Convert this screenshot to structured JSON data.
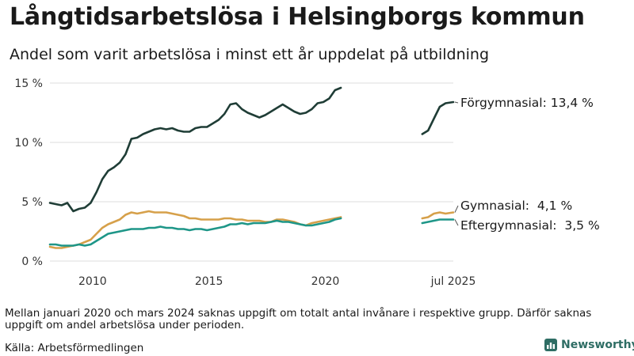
{
  "title": "Långtidsarbetslösa i Helsingborgs kommun",
  "subtitle": "Andel som varit arbetslösa i minst ett år uppdelat på utbildning",
  "note": "Mellan januari 2020 och mars 2024 saknas uppgift om totalt antal invånare i respektive grupp. Därför saknas uppgift om andel arbetslösa under perioden.",
  "source": "Källa: Arbetsförmedlingen",
  "brand": "Newsworthy",
  "colors": {
    "forgymnasial": "#1f3d36",
    "gymnasial": "#d6a04a",
    "eftergymnasial": "#1e9688",
    "grid": "#dcdcdc",
    "brand": "#2e6d64"
  },
  "chart_data": {
    "type": "line",
    "title": "Långtidsarbetslösa i Helsingborgs kommun",
    "subtitle": "Andel som varit arbetslösa i minst ett år uppdelat på utbildning",
    "ylim": [
      0,
      15
    ],
    "yticks": [
      0,
      5,
      10,
      15
    ],
    "ytick_labels": [
      "0 %",
      "5 %",
      "10 %",
      "15 %"
    ],
    "xlim": [
      "2008-03",
      "2025-07"
    ],
    "xticks": [
      "2010-01",
      "2015-01",
      "2020-01",
      "2025-07"
    ],
    "xtick_labels": [
      "2010",
      "2015",
      "2020",
      "jul 2025"
    ],
    "grid": true,
    "legend": "end-labels-right",
    "series": [
      {
        "name": "Förgymnasial",
        "end_label": "Förgymnasial: 13,4 %",
        "segments": [
          [
            [
              "2008-03",
              4.9
            ],
            [
              "2008-06",
              4.8
            ],
            [
              "2008-09",
              4.7
            ],
            [
              "2008-12",
              4.9
            ],
            [
              "2009-03",
              4.2
            ],
            [
              "2009-06",
              4.4
            ],
            [
              "2009-09",
              4.5
            ],
            [
              "2009-12",
              4.9
            ],
            [
              "2010-03",
              5.8
            ],
            [
              "2010-06",
              6.9
            ],
            [
              "2010-09",
              7.6
            ],
            [
              "2010-12",
              7.9
            ],
            [
              "2011-03",
              8.3
            ],
            [
              "2011-06",
              9.0
            ],
            [
              "2011-09",
              10.3
            ],
            [
              "2011-12",
              10.4
            ],
            [
              "2012-03",
              10.7
            ],
            [
              "2012-06",
              10.9
            ],
            [
              "2012-09",
              11.1
            ],
            [
              "2012-12",
              11.2
            ],
            [
              "2013-03",
              11.1
            ],
            [
              "2013-06",
              11.2
            ],
            [
              "2013-09",
              11.0
            ],
            [
              "2013-12",
              10.9
            ],
            [
              "2014-03",
              10.9
            ],
            [
              "2014-06",
              11.2
            ],
            [
              "2014-09",
              11.3
            ],
            [
              "2014-12",
              11.3
            ],
            [
              "2015-03",
              11.6
            ],
            [
              "2015-06",
              11.9
            ],
            [
              "2015-09",
              12.4
            ],
            [
              "2015-12",
              13.2
            ],
            [
              "2016-03",
              13.3
            ],
            [
              "2016-06",
              12.8
            ],
            [
              "2016-09",
              12.5
            ],
            [
              "2016-12",
              12.3
            ],
            [
              "2017-03",
              12.1
            ],
            [
              "2017-06",
              12.3
            ],
            [
              "2017-09",
              12.6
            ],
            [
              "2017-12",
              12.9
            ],
            [
              "2018-03",
              13.2
            ],
            [
              "2018-06",
              12.9
            ],
            [
              "2018-09",
              12.6
            ],
            [
              "2018-12",
              12.4
            ],
            [
              "2019-03",
              12.5
            ],
            [
              "2019-06",
              12.8
            ],
            [
              "2019-09",
              13.3
            ],
            [
              "2019-12",
              13.4
            ],
            [
              "2020-03",
              13.7
            ],
            [
              "2020-06",
              14.4
            ],
            [
              "2020-09",
              14.6
            ]
          ],
          [
            [
              "2024-03",
              10.7
            ],
            [
              "2024-06",
              11.0
            ],
            [
              "2024-09",
              12.0
            ],
            [
              "2024-12",
              13.0
            ],
            [
              "2025-03",
              13.3
            ],
            [
              "2025-07",
              13.4
            ]
          ]
        ]
      },
      {
        "name": "Gymnasial",
        "end_label": "Gymnasial:  4,1 %",
        "segments": [
          [
            [
              "2008-03",
              1.2
            ],
            [
              "2008-06",
              1.1
            ],
            [
              "2008-09",
              1.1
            ],
            [
              "2008-12",
              1.2
            ],
            [
              "2009-03",
              1.3
            ],
            [
              "2009-06",
              1.4
            ],
            [
              "2009-09",
              1.6
            ],
            [
              "2009-12",
              1.8
            ],
            [
              "2010-03",
              2.3
            ],
            [
              "2010-06",
              2.8
            ],
            [
              "2010-09",
              3.1
            ],
            [
              "2010-12",
              3.3
            ],
            [
              "2011-03",
              3.5
            ],
            [
              "2011-06",
              3.9
            ],
            [
              "2011-09",
              4.1
            ],
            [
              "2011-12",
              4.0
            ],
            [
              "2012-03",
              4.1
            ],
            [
              "2012-06",
              4.2
            ],
            [
              "2012-09",
              4.1
            ],
            [
              "2012-12",
              4.1
            ],
            [
              "2013-03",
              4.1
            ],
            [
              "2013-06",
              4.0
            ],
            [
              "2013-09",
              3.9
            ],
            [
              "2013-12",
              3.8
            ],
            [
              "2014-03",
              3.6
            ],
            [
              "2014-06",
              3.6
            ],
            [
              "2014-09",
              3.5
            ],
            [
              "2014-12",
              3.5
            ],
            [
              "2015-03",
              3.5
            ],
            [
              "2015-06",
              3.5
            ],
            [
              "2015-09",
              3.6
            ],
            [
              "2015-12",
              3.6
            ],
            [
              "2016-03",
              3.5
            ],
            [
              "2016-06",
              3.5
            ],
            [
              "2016-09",
              3.4
            ],
            [
              "2016-12",
              3.4
            ],
            [
              "2017-03",
              3.4
            ],
            [
              "2017-06",
              3.3
            ],
            [
              "2017-09",
              3.3
            ],
            [
              "2017-12",
              3.5
            ],
            [
              "2018-03",
              3.5
            ],
            [
              "2018-06",
              3.4
            ],
            [
              "2018-09",
              3.3
            ],
            [
              "2018-12",
              3.1
            ],
            [
              "2019-03",
              3.0
            ],
            [
              "2019-06",
              3.2
            ],
            [
              "2019-09",
              3.3
            ],
            [
              "2019-12",
              3.4
            ],
            [
              "2020-03",
              3.5
            ],
            [
              "2020-06",
              3.6
            ],
            [
              "2020-09",
              3.7
            ]
          ],
          [
            [
              "2024-03",
              3.6
            ],
            [
              "2024-06",
              3.7
            ],
            [
              "2024-09",
              4.0
            ],
            [
              "2024-12",
              4.1
            ],
            [
              "2025-03",
              4.0
            ],
            [
              "2025-07",
              4.1
            ]
          ]
        ]
      },
      {
        "name": "Eftergymnasial",
        "end_label": "Eftergymnasial:  3,5 %",
        "segments": [
          [
            [
              "2008-03",
              1.4
            ],
            [
              "2008-06",
              1.4
            ],
            [
              "2008-09",
              1.3
            ],
            [
              "2008-12",
              1.3
            ],
            [
              "2009-03",
              1.3
            ],
            [
              "2009-06",
              1.4
            ],
            [
              "2009-09",
              1.3
            ],
            [
              "2009-12",
              1.4
            ],
            [
              "2010-03",
              1.7
            ],
            [
              "2010-06",
              2.0
            ],
            [
              "2010-09",
              2.3
            ],
            [
              "2010-12",
              2.4
            ],
            [
              "2011-03",
              2.5
            ],
            [
              "2011-06",
              2.6
            ],
            [
              "2011-09",
              2.7
            ],
            [
              "2011-12",
              2.7
            ],
            [
              "2012-03",
              2.7
            ],
            [
              "2012-06",
              2.8
            ],
            [
              "2012-09",
              2.8
            ],
            [
              "2012-12",
              2.9
            ],
            [
              "2013-03",
              2.8
            ],
            [
              "2013-06",
              2.8
            ],
            [
              "2013-09",
              2.7
            ],
            [
              "2013-12",
              2.7
            ],
            [
              "2014-03",
              2.6
            ],
            [
              "2014-06",
              2.7
            ],
            [
              "2014-09",
              2.7
            ],
            [
              "2014-12",
              2.6
            ],
            [
              "2015-03",
              2.7
            ],
            [
              "2015-06",
              2.8
            ],
            [
              "2015-09",
              2.9
            ],
            [
              "2015-12",
              3.1
            ],
            [
              "2016-03",
              3.1
            ],
            [
              "2016-06",
              3.2
            ],
            [
              "2016-09",
              3.1
            ],
            [
              "2016-12",
              3.2
            ],
            [
              "2017-03",
              3.2
            ],
            [
              "2017-06",
              3.2
            ],
            [
              "2017-09",
              3.3
            ],
            [
              "2017-12",
              3.4
            ],
            [
              "2018-03",
              3.3
            ],
            [
              "2018-06",
              3.3
            ],
            [
              "2018-09",
              3.2
            ],
            [
              "2018-12",
              3.1
            ],
            [
              "2019-03",
              3.0
            ],
            [
              "2019-06",
              3.0
            ],
            [
              "2019-09",
              3.1
            ],
            [
              "2019-12",
              3.2
            ],
            [
              "2020-03",
              3.3
            ],
            [
              "2020-06",
              3.5
            ],
            [
              "2020-09",
              3.6
            ]
          ],
          [
            [
              "2024-03",
              3.2
            ],
            [
              "2024-06",
              3.3
            ],
            [
              "2024-09",
              3.4
            ],
            [
              "2024-12",
              3.5
            ],
            [
              "2025-03",
              3.5
            ],
            [
              "2025-07",
              3.5
            ]
          ]
        ]
      }
    ]
  }
}
